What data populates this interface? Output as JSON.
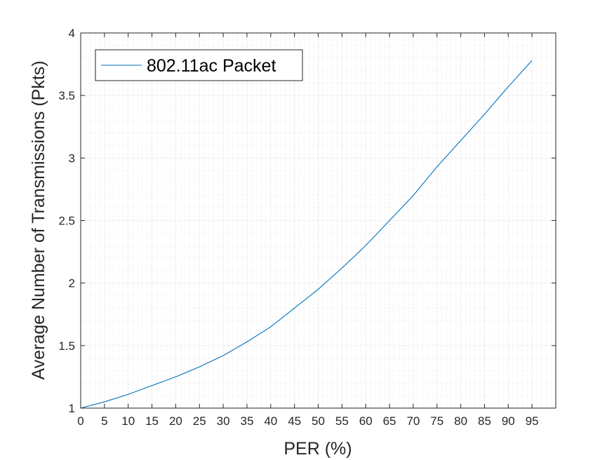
{
  "chart_data": {
    "type": "line",
    "xlabel": "PER (%)",
    "ylabel": "Average Number of Transmissions (Pkts)",
    "xlim": [
      0,
      100
    ],
    "ylim": [
      1,
      4
    ],
    "xticks": [
      0,
      5,
      10,
      15,
      20,
      25,
      30,
      35,
      40,
      45,
      50,
      55,
      60,
      65,
      70,
      75,
      80,
      85,
      90,
      95
    ],
    "xtick_labels": [
      "0",
      "5",
      "10",
      "15",
      "20",
      "25",
      "30",
      "35",
      "40",
      "45",
      "50",
      "55",
      "60",
      "65",
      "70",
      "75",
      "80",
      "85",
      "90",
      "95"
    ],
    "yticks": [
      1,
      1.5,
      2,
      2.5,
      3,
      3.5,
      4
    ],
    "ytick_labels": [
      "1",
      "1.5",
      "2",
      "2.5",
      "3",
      "3.5",
      "4"
    ],
    "grid": true,
    "minor_grid": true,
    "legend_location": "top-left",
    "series": [
      {
        "name": "802.11ac Packet",
        "color": "#0072BD",
        "x": [
          0,
          5,
          10,
          15,
          20,
          25,
          30,
          35,
          40,
          45,
          50,
          55,
          60,
          65,
          70,
          75,
          80,
          85,
          90,
          95
        ],
        "y": [
          1.0,
          1.05,
          1.11,
          1.18,
          1.25,
          1.33,
          1.42,
          1.53,
          1.65,
          1.8,
          1.95,
          2.12,
          2.3,
          2.5,
          2.7,
          2.93,
          3.14,
          3.35,
          3.57,
          3.78
        ]
      }
    ]
  }
}
